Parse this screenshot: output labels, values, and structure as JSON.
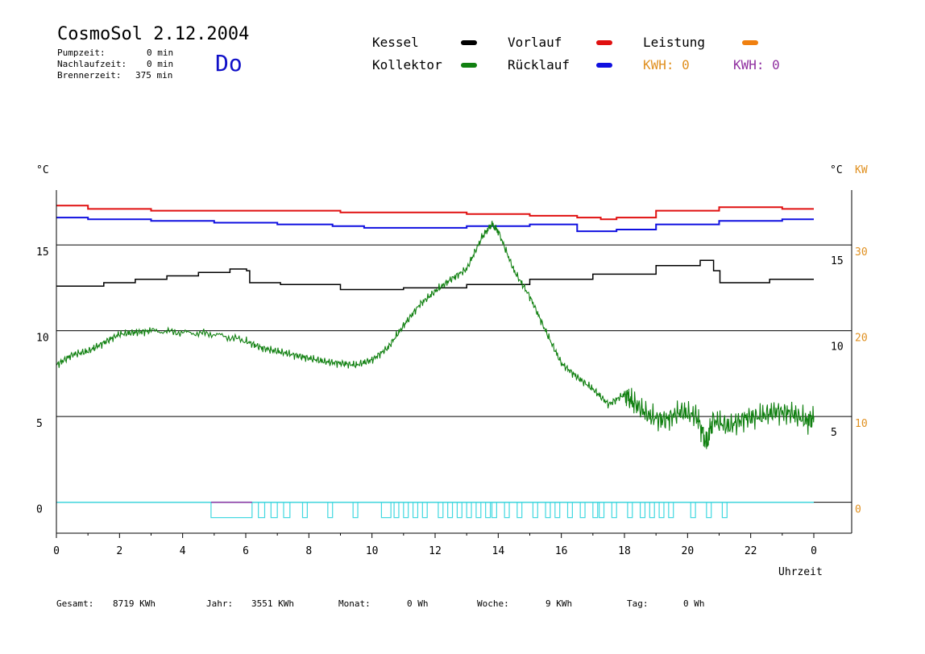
{
  "header": {
    "title": "CosmoSol 2.12.2004",
    "day": "Do",
    "stats": [
      {
        "label": "Pumpzeit:",
        "value": "0 min"
      },
      {
        "label": "Nachlaufzeit:",
        "value": "0 min"
      },
      {
        "label": "Brennerzeit:",
        "value": "375 min"
      }
    ]
  },
  "legend": {
    "items": [
      {
        "label": "Kessel",
        "color": "#000000"
      },
      {
        "label": "Vorlauf",
        "color": "#e01010"
      },
      {
        "label": "Leistung",
        "color": "#f08010"
      },
      {
        "label": "Kollektor",
        "color": "#108010"
      },
      {
        "label": "Rücklauf",
        "color": "#1010e0"
      }
    ],
    "kwh_orange": "KWH: 0",
    "kwh_orange_color": "#e09020",
    "kwh_purple": "KWH: 0",
    "kwh_purple_color": "#9030a0"
  },
  "chart_data": {
    "type": "line",
    "x_unit_label": "Uhrzeit",
    "left_axis_label": "°C",
    "right_axis_label_c": "°C",
    "right_axis_label_kw": "KW",
    "x_ticks": [
      "0",
      "2",
      "4",
      "6",
      "8",
      "10",
      "12",
      "14",
      "16",
      "18",
      "20",
      "22",
      "0"
    ],
    "y_left_ticks": [
      "15",
      "10",
      "5",
      "0"
    ],
    "y_right_c_ticks": [
      "15",
      "10",
      "5"
    ],
    "y_right_kw_ticks": [
      "30",
      "20",
      "10",
      "0"
    ],
    "xlim": [
      0,
      24
    ],
    "ylim": [
      -1.8,
      18.2
    ],
    "grid_y": [
      15,
      10,
      5,
      0
    ],
    "series": [
      {
        "name": "Vorlauf",
        "color": "#e01010",
        "x": [
          0,
          2,
          4,
          6,
          8,
          10,
          12,
          14,
          16,
          17,
          17.5,
          18,
          20,
          22,
          24
        ],
        "y": [
          17.3,
          17.1,
          17.0,
          17.0,
          17.0,
          16.9,
          16.9,
          16.8,
          16.7,
          16.6,
          16.5,
          16.6,
          17.0,
          17.2,
          17.1
        ]
      },
      {
        "name": "Rücklauf",
        "color": "#1010e0",
        "x": [
          0,
          2,
          4,
          6,
          8,
          9.5,
          10,
          12,
          14,
          16,
          17,
          17.5,
          18,
          20,
          22,
          24
        ],
        "y": [
          16.6,
          16.5,
          16.4,
          16.3,
          16.2,
          16.1,
          16.0,
          16.0,
          16.1,
          16.2,
          15.8,
          15.8,
          15.9,
          16.2,
          16.4,
          16.5
        ]
      },
      {
        "name": "Kessel",
        "color": "#000000",
        "x": [
          0,
          1,
          2,
          3,
          4,
          5,
          6,
          6.05,
          6.2,
          8,
          10,
          12,
          14,
          16,
          18,
          20,
          20.8,
          20.85,
          21.2,
          24
        ],
        "y": [
          12.6,
          12.6,
          12.8,
          13.0,
          13.2,
          13.4,
          13.6,
          13.5,
          12.8,
          12.7,
          12.4,
          12.5,
          12.7,
          13.0,
          13.3,
          13.8,
          14.1,
          13.5,
          12.8,
          13.0
        ]
      },
      {
        "name": "Kollektor",
        "color": "#108010",
        "x": [
          0,
          0.5,
          1,
          1.5,
          2,
          2.5,
          3,
          4,
          5,
          6,
          6.5,
          7,
          7.5,
          8,
          8.5,
          9,
          9.5,
          10,
          10.5,
          11,
          11.5,
          12,
          12.5,
          13,
          13.5,
          13.8,
          14,
          14.5,
          15,
          15.5,
          16,
          16.5,
          17,
          17.5,
          18,
          18.3,
          18.8,
          19.3,
          19.8,
          20.3,
          20.6,
          20.8,
          21.3,
          21.8,
          22.3,
          22.8,
          23.3,
          23.8,
          24
        ],
        "y": [
          8.0,
          8.6,
          8.8,
          9.3,
          9.8,
          9.9,
          10.0,
          9.9,
          9.8,
          9.4,
          9.0,
          8.8,
          8.6,
          8.4,
          8.2,
          8.1,
          8.0,
          8.3,
          9.0,
          10.3,
          11.5,
          12.3,
          13.0,
          13.6,
          15.5,
          16.2,
          15.8,
          13.5,
          12.0,
          10.0,
          8.1,
          7.3,
          6.6,
          5.7,
          6.3,
          5.8,
          5.0,
          4.8,
          5.3,
          5.0,
          3.4,
          4.8,
          4.4,
          4.9,
          5.0,
          5.3,
          5.2,
          4.7,
          5.0
        ]
      }
    ],
    "burner_intervals": [
      [
        4.9,
        6.2
      ],
      [
        6.4,
        6.6
      ],
      [
        6.8,
        7.0
      ],
      [
        7.2,
        7.4
      ],
      [
        7.8,
        7.95
      ],
      [
        8.6,
        8.75
      ],
      [
        9.4,
        9.55
      ],
      [
        10.3,
        10.6
      ],
      [
        10.7,
        10.85
      ],
      [
        11.0,
        11.15
      ],
      [
        11.3,
        11.45
      ],
      [
        11.6,
        11.75
      ],
      [
        12.1,
        12.25
      ],
      [
        12.4,
        12.55
      ],
      [
        12.7,
        12.85
      ],
      [
        13.0,
        13.15
      ],
      [
        13.3,
        13.45
      ],
      [
        13.6,
        13.75
      ],
      [
        13.8,
        13.95
      ],
      [
        14.2,
        14.35
      ],
      [
        14.6,
        14.75
      ],
      [
        15.1,
        15.25
      ],
      [
        15.5,
        15.65
      ],
      [
        15.8,
        15.95
      ],
      [
        16.2,
        16.35
      ],
      [
        16.6,
        16.75
      ],
      [
        17.0,
        17.15
      ],
      [
        17.2,
        17.35
      ],
      [
        17.6,
        17.75
      ],
      [
        18.1,
        18.25
      ],
      [
        18.5,
        18.65
      ],
      [
        18.8,
        18.95
      ],
      [
        19.1,
        19.25
      ],
      [
        19.4,
        19.55
      ],
      [
        20.1,
        20.25
      ],
      [
        20.6,
        20.75
      ],
      [
        21.1,
        21.25
      ]
    ],
    "burner_color": "#40d8e0",
    "pump_interval": [
      4.9,
      6.2
    ],
    "pump_color": "#9030a0"
  },
  "footer": {
    "items": [
      {
        "label": "Gesamt:",
        "value": "8719 KWh"
      },
      {
        "label": "Jahr:",
        "value": "3551 KWh"
      },
      {
        "label": "Monat:",
        "value": "0 Wh"
      },
      {
        "label": "Woche:",
        "value": "9 KWh"
      },
      {
        "label": "Tag:",
        "value": "0 Wh"
      }
    ]
  }
}
